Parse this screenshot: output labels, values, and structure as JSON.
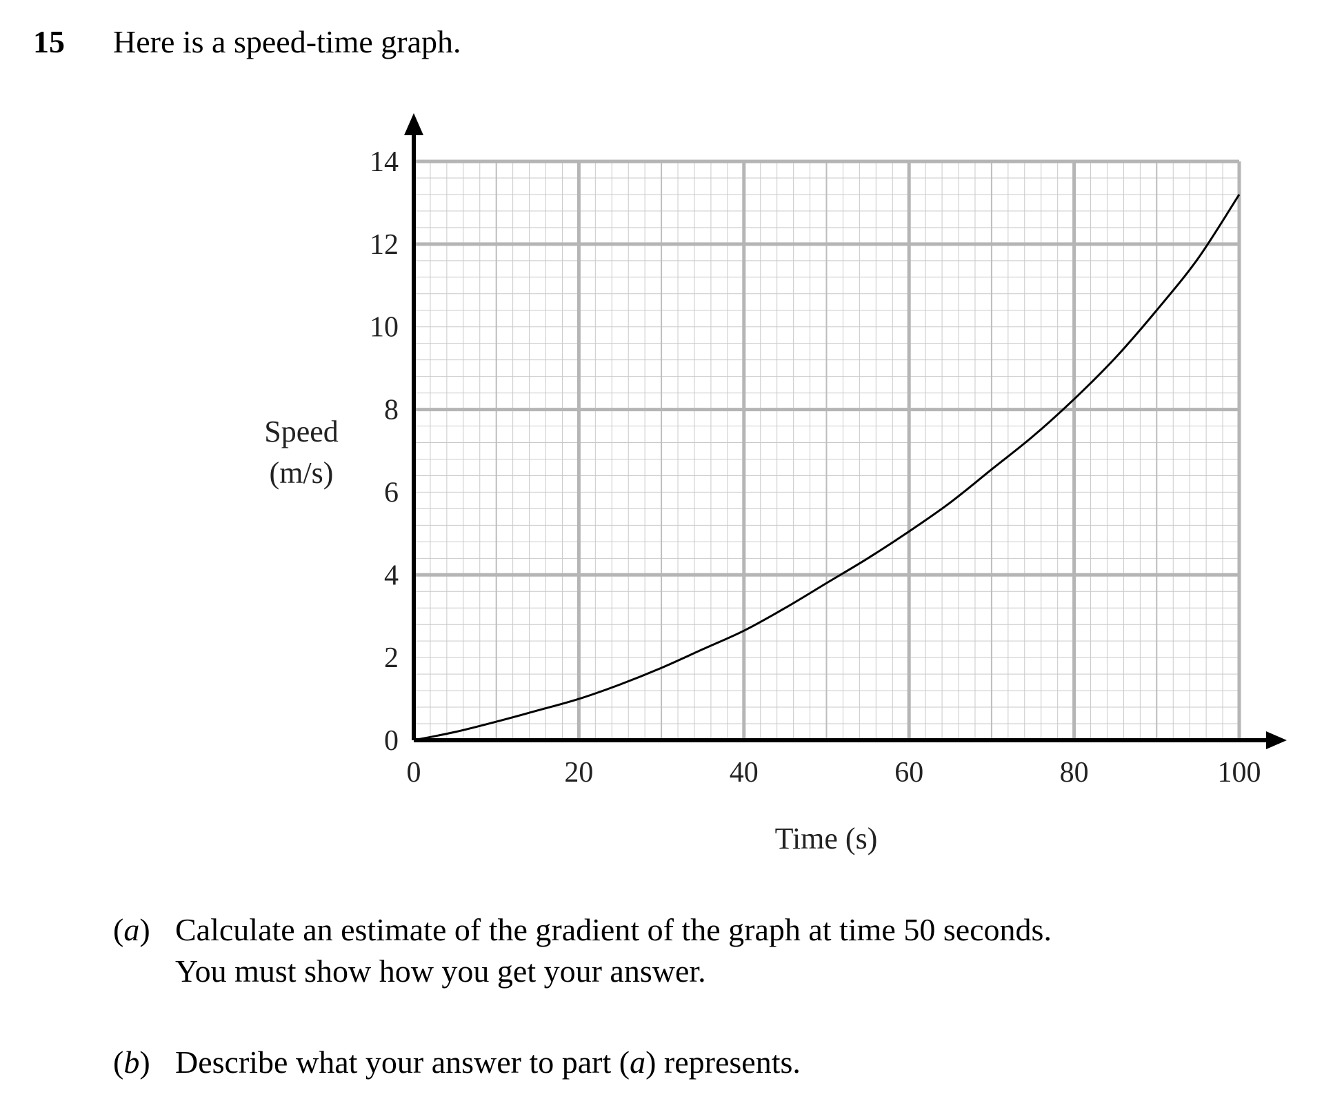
{
  "question": {
    "number": "15",
    "intro": "Here is a speed-time graph."
  },
  "chart_data": {
    "type": "line",
    "title": "",
    "xlabel": "Time (s)",
    "ylabel_line1": "Speed",
    "ylabel_line2": "(m/s)",
    "xlim": [
      0,
      100
    ],
    "ylim": [
      0,
      14
    ],
    "xticks": [
      0,
      20,
      40,
      60,
      80,
      100
    ],
    "yticks": [
      0,
      2,
      4,
      6,
      8,
      10,
      12,
      14
    ],
    "grid": true,
    "series": [
      {
        "x": [
          0,
          5,
          10,
          15,
          20,
          25,
          30,
          35,
          40,
          45,
          50,
          55,
          60,
          65,
          70,
          75,
          80,
          85,
          90,
          95,
          100
        ],
        "values": [
          0,
          0.2,
          0.45,
          0.72,
          1.0,
          1.35,
          1.75,
          2.2,
          2.65,
          3.2,
          3.8,
          4.4,
          5.05,
          5.75,
          6.55,
          7.35,
          8.25,
          9.25,
          10.4,
          11.65,
          13.2
        ]
      }
    ]
  },
  "parts": [
    {
      "label_open": "(",
      "label_letter": "a",
      "label_close": ")",
      "line1": "Calculate an estimate of the gradient of the graph at time 50 seconds.",
      "line2": "You must show how you get your answer."
    },
    {
      "label_open": "(",
      "label_letter": "b",
      "label_close": ")",
      "line1_pre": "Describe what your answer to part (",
      "line1_em": "a",
      "line1_post": ") represents."
    }
  ]
}
